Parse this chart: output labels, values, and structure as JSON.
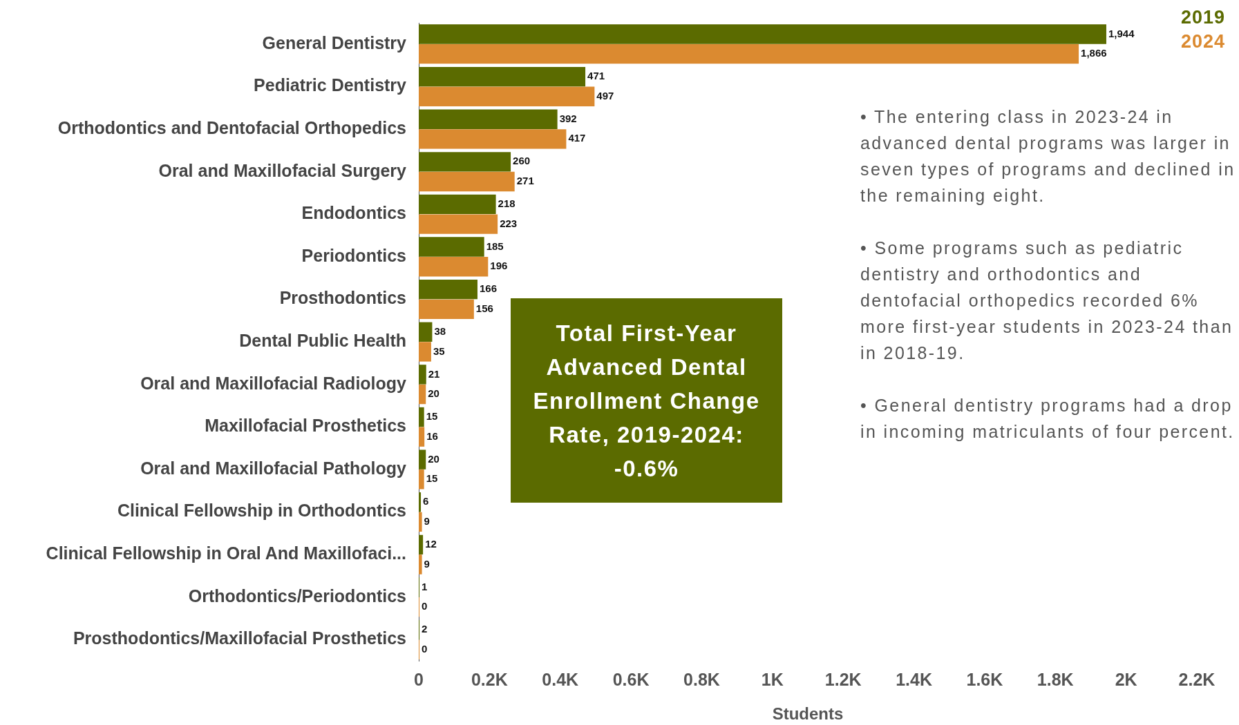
{
  "chart_data": {
    "type": "bar",
    "orientation": "horizontal",
    "categories": [
      "General Dentistry",
      "Pediatric Dentistry",
      "Orthodontics and Dentofacial Orthopedics",
      "Oral and Maxillofacial Surgery",
      "Endodontics",
      "Periodontics",
      "Prosthodontics",
      "Dental Public Health",
      "Oral and Maxillofacial Radiology",
      "Maxillofacial Prosthetics",
      "Oral and Maxillofacial Pathology",
      "Clinical Fellowship in Orthodontics",
      "Clinical Fellowship in Oral And Maxillofaci...",
      "Orthodontics/Periodontics",
      "Prosthodontics/Maxillofacial Prosthetics"
    ],
    "series": [
      {
        "name": "2019",
        "color": "#5b6b00",
        "values": [
          1944,
          471,
          392,
          260,
          218,
          185,
          166,
          38,
          21,
          15,
          20,
          6,
          12,
          1,
          2
        ],
        "value_labels": [
          "1,944",
          "471",
          "392",
          "260",
          "218",
          "185",
          "166",
          "38",
          "21",
          "15",
          "20",
          "6",
          "12",
          "1",
          "2"
        ]
      },
      {
        "name": "2024",
        "color": "#db8a30",
        "values": [
          1866,
          497,
          417,
          271,
          223,
          196,
          156,
          35,
          20,
          16,
          15,
          9,
          9,
          0,
          0
        ],
        "value_labels": [
          "1,866",
          "497",
          "417",
          "271",
          "223",
          "196",
          "156",
          "35",
          "20",
          "16",
          "15",
          "9",
          "9",
          "0",
          "0"
        ]
      }
    ],
    "xlabel": "Students",
    "xlim": [
      0,
      2200
    ],
    "xticks": [
      0,
      {
        "value": 200,
        "label": "0.2K"
      },
      {
        "value": 400,
        "label": "0.4K"
      },
      {
        "value": 600,
        "label": "0.6K"
      },
      {
        "value": 800,
        "label": "0.8K"
      },
      {
        "value": 1000,
        "label": "1K"
      },
      {
        "value": 1200,
        "label": "1.2K"
      },
      {
        "value": 1400,
        "label": "1.4K"
      },
      {
        "value": 1600,
        "label": "1.6K"
      },
      {
        "value": 1800,
        "label": "1.8K"
      },
      {
        "value": 2000,
        "label": "2K"
      },
      {
        "value": 2200,
        "label": "2.2K"
      }
    ],
    "grid": false,
    "legend": "top right",
    "annotations": [
      "Total First-Year Advanced Dental Enrollment Change Rate, 2019-2024: -0.6%",
      "• The entering class in 2023-24 in advanced dental programs was larger in seven types of programs and declined in the remaining eight.",
      "• Some programs such as pediatric dentistry and orthodontics and dentofacial orthopedics recorded 6% more first-year students in 2023-24 than in 2018-19.",
      "• General dentistry programs had a drop in incoming matriculants of four percent."
    ]
  }
}
